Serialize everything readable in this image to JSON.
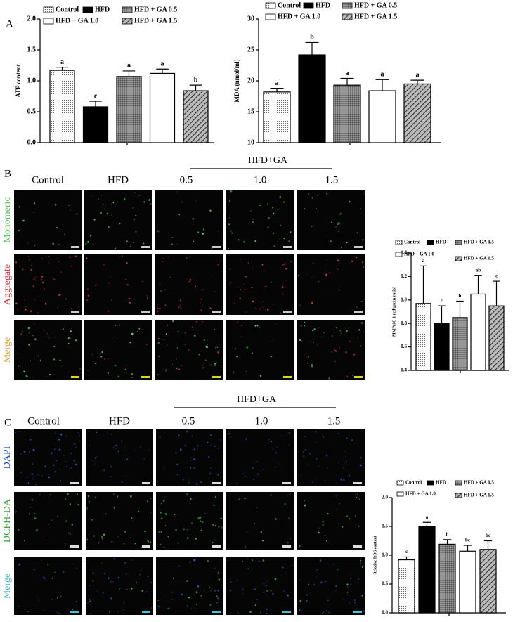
{
  "panels": {
    "A": {
      "label": "A"
    },
    "B": {
      "label": "B",
      "group_label": "HFD+GA",
      "columns": [
        "Control",
        "HFD",
        "0.5",
        "1.0",
        "1.5"
      ],
      "rows": [
        "Monomeric",
        "Aggregate",
        "Merge"
      ]
    },
    "C": {
      "label": "C",
      "group_label": "HFD+GA",
      "columns": [
        "Control",
        "HFD",
        "0.5",
        "1.0",
        "1.5"
      ],
      "rows": [
        "DAPI",
        "DCFH-DA",
        "Merge"
      ]
    }
  },
  "chart_data": [
    {
      "type": "bar",
      "ylabel": "ATP content",
      "ylim": [
        0,
        2
      ],
      "yticks": [
        {
          "value": 0,
          "label": "0.0"
        },
        0.5,
        {
          "value": 1,
          "label": "1.0"
        },
        1.5,
        {
          "value": 2,
          "label": "2.0"
        }
      ],
      "series": [
        {
          "name": "Control",
          "pattern": "dots",
          "values": [
            1.17
          ],
          "errors": [
            0.05
          ],
          "annotation": "a"
        },
        {
          "name": "HFD",
          "pattern": "solid",
          "values": [
            0.58
          ],
          "errors": [
            0.09
          ],
          "annotation": "c"
        },
        {
          "name": "HFD + GA 0.5",
          "pattern": "grid",
          "values": [
            1.07
          ],
          "errors": [
            0.09
          ],
          "annotation": "a"
        },
        {
          "name": "HFD + GA 1.0",
          "pattern": "none",
          "values": [
            1.12
          ],
          "errors": [
            0.07
          ],
          "annotation": "a"
        },
        {
          "name": "HFD + GA 1.5",
          "pattern": "diagonal",
          "values": [
            0.84
          ],
          "errors": [
            0.09
          ],
          "annotation": "b"
        }
      ]
    },
    {
      "type": "bar",
      "ylabel": "MDA (nmol/ml)",
      "ylim": [
        10,
        30
      ],
      "yticks": [
        10,
        15,
        20,
        25,
        30
      ],
      "series": [
        {
          "name": "Control",
          "pattern": "dots",
          "values": [
            18.2
          ],
          "errors": [
            0.6
          ],
          "annotation": "a"
        },
        {
          "name": "HFD",
          "pattern": "solid",
          "values": [
            24.2
          ],
          "errors": [
            2.0
          ],
          "annotation": "b"
        },
        {
          "name": "HFD + GA 0.5",
          "pattern": "grid",
          "values": [
            19.3
          ],
          "errors": [
            1.1
          ],
          "annotation": "a"
        },
        {
          "name": "HFD + GA 1.0",
          "pattern": "none",
          "values": [
            18.4
          ],
          "errors": [
            1.8
          ],
          "annotation": "a"
        },
        {
          "name": "HFD + GA 1.5",
          "pattern": "diagonal",
          "values": [
            19.5
          ],
          "errors": [
            0.6
          ],
          "annotation": "a"
        }
      ]
    },
    {
      "type": "bar",
      "ylabel": "MMP(JC-1 red/green ratio)",
      "ylim": [
        0.4,
        1.4
      ],
      "yticks": [
        0.4,
        0.6,
        0.8,
        {
          "value": 1,
          "label": "1.0"
        },
        1.2,
        1.4
      ],
      "series": [
        {
          "name": "Control",
          "pattern": "dots",
          "values": [
            0.97
          ],
          "errors": [
            0.32
          ],
          "annotation": "a"
        },
        {
          "name": "HFD",
          "pattern": "solid",
          "values": [
            0.8
          ],
          "errors": [
            0.15
          ],
          "annotation": "c"
        },
        {
          "name": "HFD + GA 0.5",
          "pattern": "grid",
          "values": [
            0.85
          ],
          "errors": [
            0.14
          ],
          "annotation": "b"
        },
        {
          "name": "HFD + GA 1.0",
          "pattern": "none",
          "values": [
            1.05
          ],
          "errors": [
            0.16
          ],
          "annotation": "ab"
        },
        {
          "name": "HFD + GA 1.5",
          "pattern": "diagonal",
          "values": [
            0.95
          ],
          "errors": [
            0.21
          ],
          "annotation": "c"
        }
      ]
    },
    {
      "type": "bar",
      "ylabel": "Relative ROS content",
      "ylim": [
        0,
        2
      ],
      "yticks": [
        {
          "value": 0,
          "label": "0.0"
        },
        0.5,
        {
          "value": 1,
          "label": "1.0"
        },
        1.5,
        {
          "value": 2,
          "label": "2.0"
        }
      ],
      "series": [
        {
          "name": "Control",
          "pattern": "dots",
          "values": [
            0.92
          ],
          "errors": [
            0.05
          ],
          "annotation": "c"
        },
        {
          "name": "HFD",
          "pattern": "solid",
          "values": [
            1.5
          ],
          "errors": [
            0.07
          ],
          "annotation": "a"
        },
        {
          "name": "HFD + GA 0.5",
          "pattern": "grid",
          "values": [
            1.19
          ],
          "errors": [
            0.08
          ],
          "annotation": "b"
        },
        {
          "name": "HFD + GA 1.0",
          "pattern": "none",
          "values": [
            1.07
          ],
          "errors": [
            0.1
          ],
          "annotation": "bc"
        },
        {
          "name": "HFD + GA 1.5",
          "pattern": "diagonal",
          "values": [
            1.1
          ],
          "errors": [
            0.15
          ],
          "annotation": "bc"
        }
      ]
    }
  ]
}
